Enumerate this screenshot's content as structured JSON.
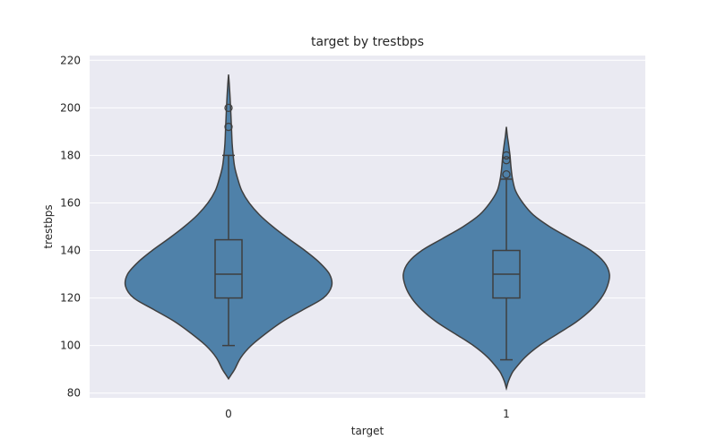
{
  "chart_data": {
    "type": "violin",
    "title": "target by trestbps",
    "xlabel": "target",
    "ylabel": "trestbps",
    "categories": [
      "0",
      "1"
    ],
    "ylim": [
      78,
      222
    ],
    "yticks": [
      80,
      100,
      120,
      140,
      160,
      180,
      200,
      220
    ],
    "grid": true,
    "colors": {
      "violin": "#4f81a9",
      "outline": "#3f3f3f",
      "background": "#eaeaf2",
      "grid": "#ffffff"
    },
    "groups": [
      {
        "category": "0",
        "box": {
          "q1": 120,
          "median": 130,
          "q3": 144.5,
          "whisker_low": 100,
          "whisker_high": 180
        },
        "outliers": [
          192,
          200
        ],
        "density": [
          [
            86,
            0.0
          ],
          [
            88,
            0.03
          ],
          [
            90,
            0.06
          ],
          [
            95,
            0.12
          ],
          [
            100,
            0.22
          ],
          [
            105,
            0.36
          ],
          [
            110,
            0.52
          ],
          [
            115,
            0.72
          ],
          [
            120,
            0.92
          ],
          [
            125,
            1.0
          ],
          [
            130,
            0.98
          ],
          [
            135,
            0.88
          ],
          [
            140,
            0.74
          ],
          [
            145,
            0.58
          ],
          [
            150,
            0.43
          ],
          [
            155,
            0.3
          ],
          [
            160,
            0.2
          ],
          [
            165,
            0.13
          ],
          [
            170,
            0.09
          ],
          [
            175,
            0.06
          ],
          [
            180,
            0.045
          ],
          [
            185,
            0.035
          ],
          [
            190,
            0.03
          ],
          [
            195,
            0.025
          ],
          [
            200,
            0.02
          ],
          [
            205,
            0.014
          ],
          [
            210,
            0.007
          ],
          [
            214,
            0.0
          ]
        ]
      },
      {
        "category": "1",
        "box": {
          "q1": 120,
          "median": 130,
          "q3": 140,
          "whisker_low": 94,
          "whisker_high": 170
        },
        "outliers": [
          172,
          178,
          180
        ],
        "density": [
          [
            82,
            0.0
          ],
          [
            85,
            0.02
          ],
          [
            88,
            0.05
          ],
          [
            90,
            0.08
          ],
          [
            95,
            0.18
          ],
          [
            100,
            0.32
          ],
          [
            105,
            0.5
          ],
          [
            110,
            0.68
          ],
          [
            115,
            0.82
          ],
          [
            120,
            0.92
          ],
          [
            125,
            0.98
          ],
          [
            130,
            1.0
          ],
          [
            135,
            0.95
          ],
          [
            140,
            0.82
          ],
          [
            145,
            0.62
          ],
          [
            150,
            0.42
          ],
          [
            155,
            0.26
          ],
          [
            160,
            0.16
          ],
          [
            165,
            0.09
          ],
          [
            170,
            0.06
          ],
          [
            175,
            0.045
          ],
          [
            180,
            0.035
          ],
          [
            185,
            0.02
          ],
          [
            188,
            0.01
          ],
          [
            192,
            0.0
          ]
        ]
      }
    ]
  }
}
